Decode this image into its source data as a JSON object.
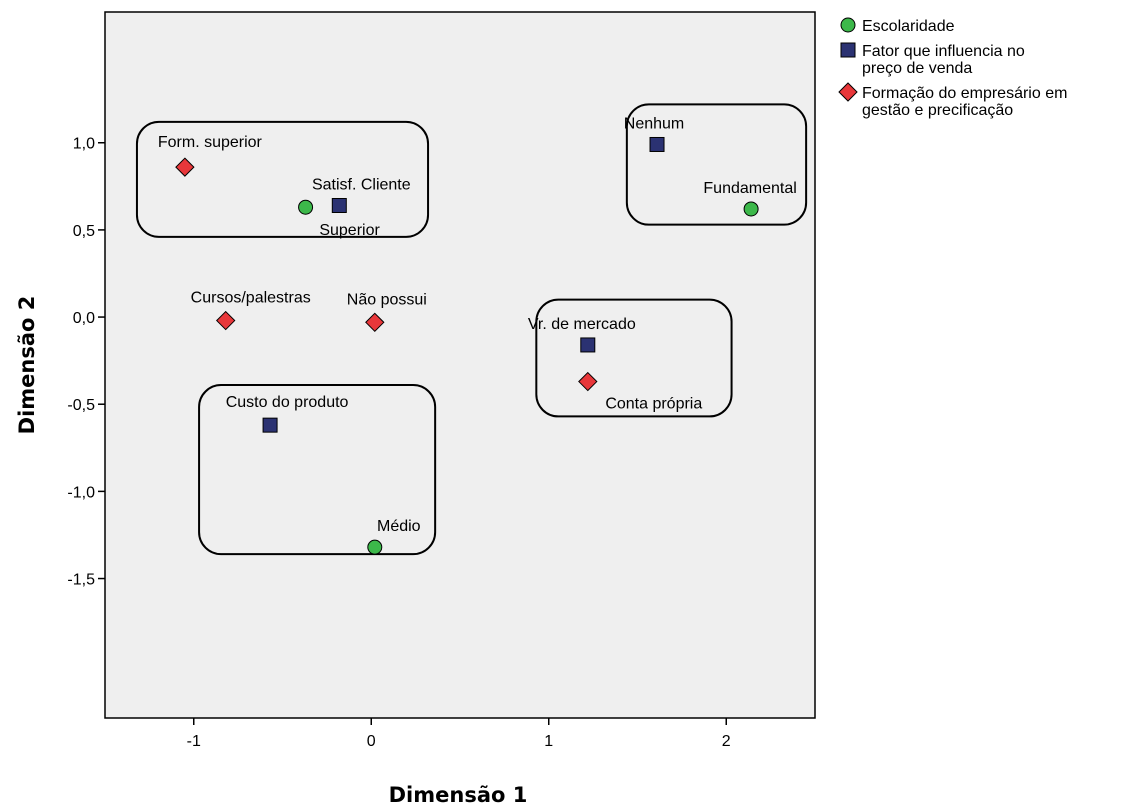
{
  "chart_data": {
    "type": "scatter",
    "title": "",
    "xlabel": "Dimensão 1",
    "ylabel": "Dimensão 2",
    "xlim": [
      -1.5,
      2.5
    ],
    "ylim": [
      -2.3,
      1.75
    ],
    "x_ticks": [
      -1,
      0,
      1,
      2
    ],
    "x_tick_labels": [
      "-1",
      "0",
      "1",
      "2"
    ],
    "y_ticks": [
      1.0,
      0.5,
      0.0,
      -0.5,
      -1.0,
      -1.5
    ],
    "y_tick_labels": [
      "1,0",
      "0,5",
      "0,0",
      "-0,5",
      "-1,0",
      "-1,5"
    ],
    "grid": false,
    "legend_position": "top-right outside",
    "series": [
      {
        "name": "Escolaridade",
        "marker": "circle",
        "color": "#3cb84a",
        "points": [
          {
            "label": "Superior",
            "x": -0.37,
            "y": 0.63
          },
          {
            "label": "Fundamental",
            "x": 2.14,
            "y": 0.62
          },
          {
            "label": "Médio",
            "x": 0.02,
            "y": -1.32
          }
        ]
      },
      {
        "name": "Fator que influencia no preço de venda",
        "legend_lines": [
          "Fator que influencia no",
          "preço de venda"
        ],
        "marker": "square",
        "color": "#2b3272",
        "points": [
          {
            "label": "Satisf. Cliente",
            "x": -0.18,
            "y": 0.64
          },
          {
            "label": "Nenhum",
            "x": 1.61,
            "y": 0.99
          },
          {
            "label": "Vr. de mercado",
            "x": 1.22,
            "y": -0.16
          },
          {
            "label": "Custo do produto",
            "x": -0.57,
            "y": -0.62
          }
        ]
      },
      {
        "name": "Formação do empresário em gestão e precificação",
        "legend_lines": [
          "Formação do empresário em",
          "gestão e precificação"
        ],
        "marker": "diamond",
        "color": "#e8373a",
        "points": [
          {
            "label": "Form. superior",
            "x": -1.05,
            "y": 0.86
          },
          {
            "label": "Cursos/palestras",
            "x": -0.82,
            "y": -0.02
          },
          {
            "label": "Não possui",
            "x": 0.02,
            "y": -0.03
          },
          {
            "label": "Conta própria",
            "x": 1.22,
            "y": -0.37
          }
        ]
      }
    ],
    "groups": [
      {
        "members": [
          "Form. superior",
          "Satisf. Cliente",
          "Superior"
        ],
        "x_range": [
          -1.32,
          0.32
        ],
        "y_range": [
          0.46,
          1.12
        ]
      },
      {
        "members": [
          "Nenhum",
          "Fundamental"
        ],
        "x_range": [
          1.44,
          2.45
        ],
        "y_range": [
          0.53,
          1.22
        ]
      },
      {
        "members": [
          "Vr. de mercado",
          "Conta própria"
        ],
        "x_range": [
          0.93,
          2.03
        ],
        "y_range": [
          -0.57,
          0.1
        ]
      },
      {
        "members": [
          "Custo do produto",
          "Médio"
        ],
        "x_range": [
          -0.97,
          0.36
        ],
        "y_range": [
          -1.36,
          -0.39
        ]
      }
    ]
  }
}
